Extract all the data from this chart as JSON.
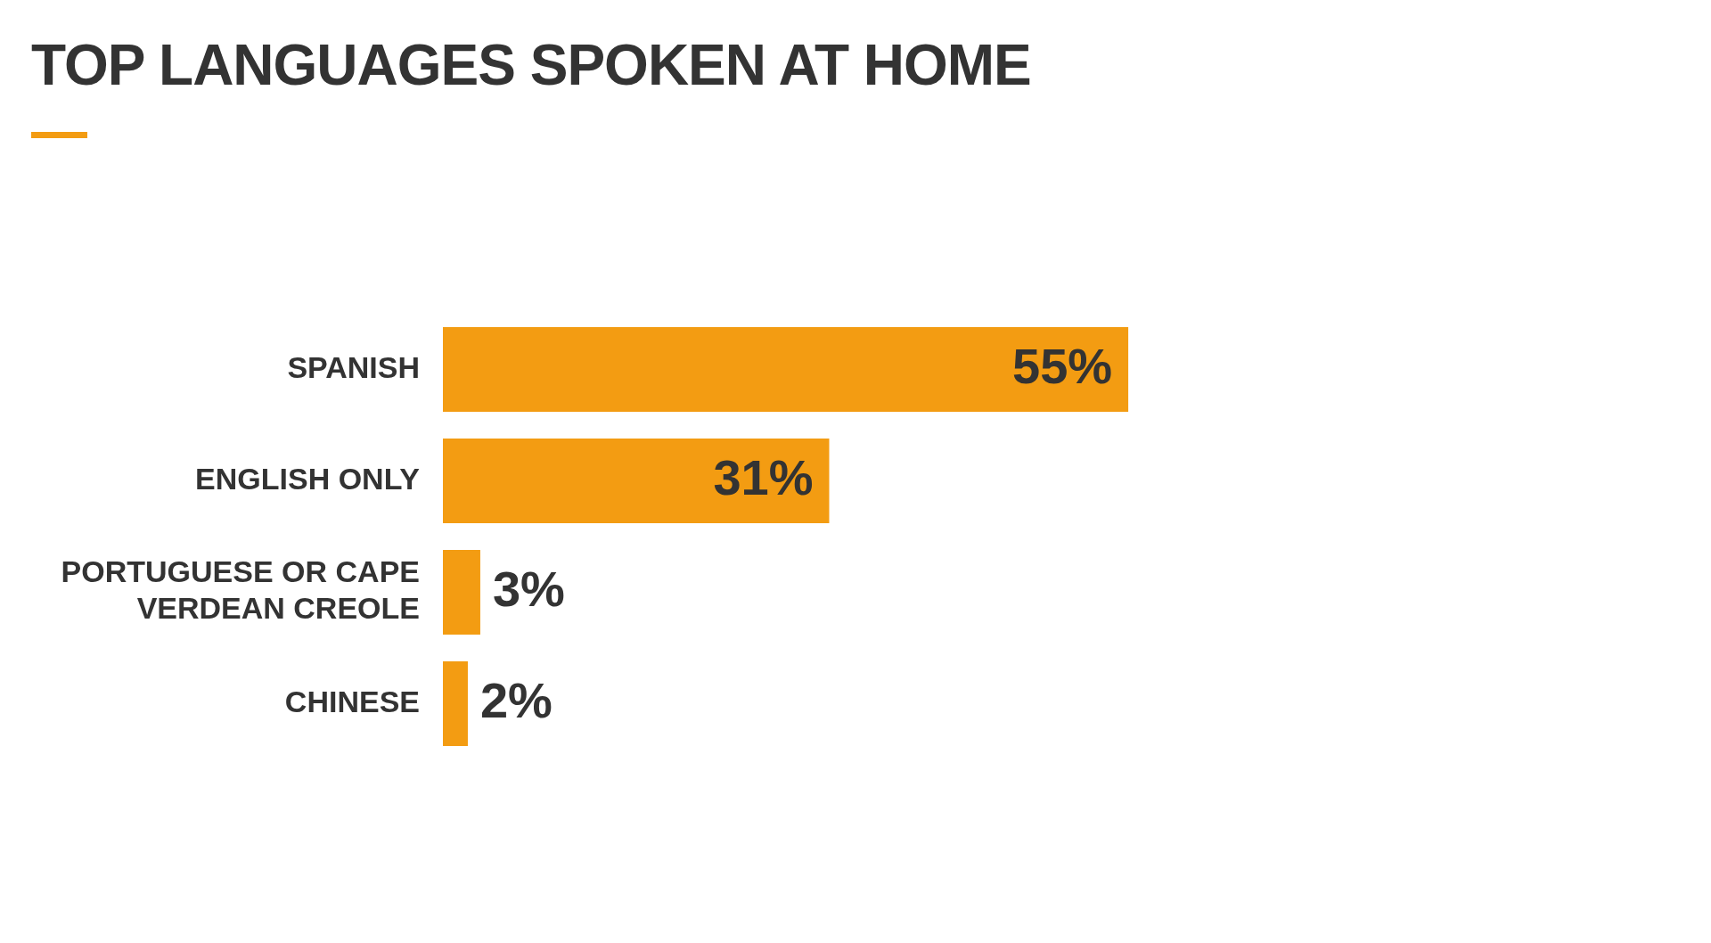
{
  "chart_data": {
    "type": "bar",
    "orientation": "horizontal",
    "title": "TOP LANGUAGES SPOKEN AT HOME",
    "categories": [
      "SPANISH",
      "ENGLISH ONLY",
      "PORTUGUESE OR CAPE VERDEAN CREOLE",
      "CHINESE"
    ],
    "values": [
      55,
      31,
      3,
      2
    ],
    "value_labels": [
      "55%",
      "31%",
      "3%",
      "2%"
    ],
    "color": "#f39c12",
    "tick_labels": "y",
    "legend": false
  }
}
